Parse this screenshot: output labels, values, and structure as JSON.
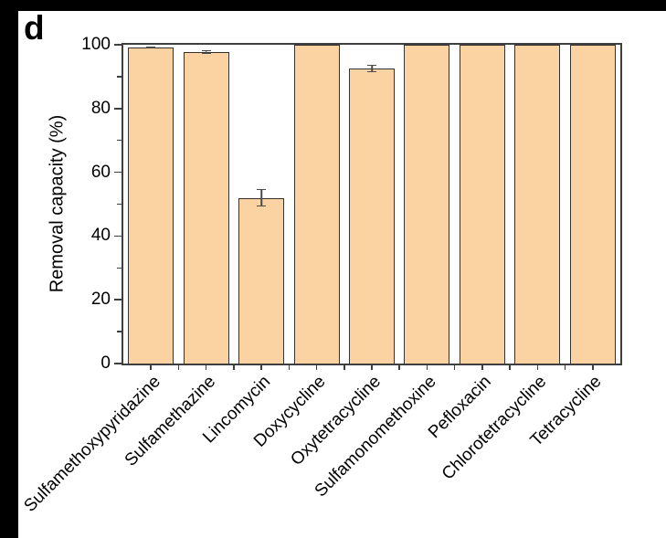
{
  "panel_label": "d",
  "chart_data": {
    "type": "bar",
    "title": "",
    "xlabel": "",
    "ylabel": "Removal capacity (%)",
    "ylim": [
      0,
      100
    ],
    "yticks": [
      0,
      20,
      40,
      60,
      80,
      100
    ],
    "yticks_minor": [
      10,
      30,
      50,
      70,
      90
    ],
    "grid": false,
    "legend_position": "none",
    "categories": [
      "Sulfamethoxypyridazine",
      "Sulfamethazine",
      "Lincomycin",
      "Doxycycline",
      "Oxytetracycline",
      "Sulfamonomethoxine",
      "Pefloxacin",
      "Chlorotetracycline",
      "Tetracycline"
    ],
    "values": [
      99.2,
      97.7,
      52.0,
      100,
      92.5,
      100,
      100,
      100,
      100
    ],
    "errors": [
      0.3,
      0.5,
      2.8,
      0,
      1.2,
      0,
      0,
      0,
      0
    ],
    "colors": {
      "bar_fill": "#FBD3A2",
      "bar_border": "#333333",
      "axis": "#3F3F3F",
      "error_bar": "#4A4A4A",
      "text": "#000000",
      "figure_border": "#000000"
    }
  }
}
